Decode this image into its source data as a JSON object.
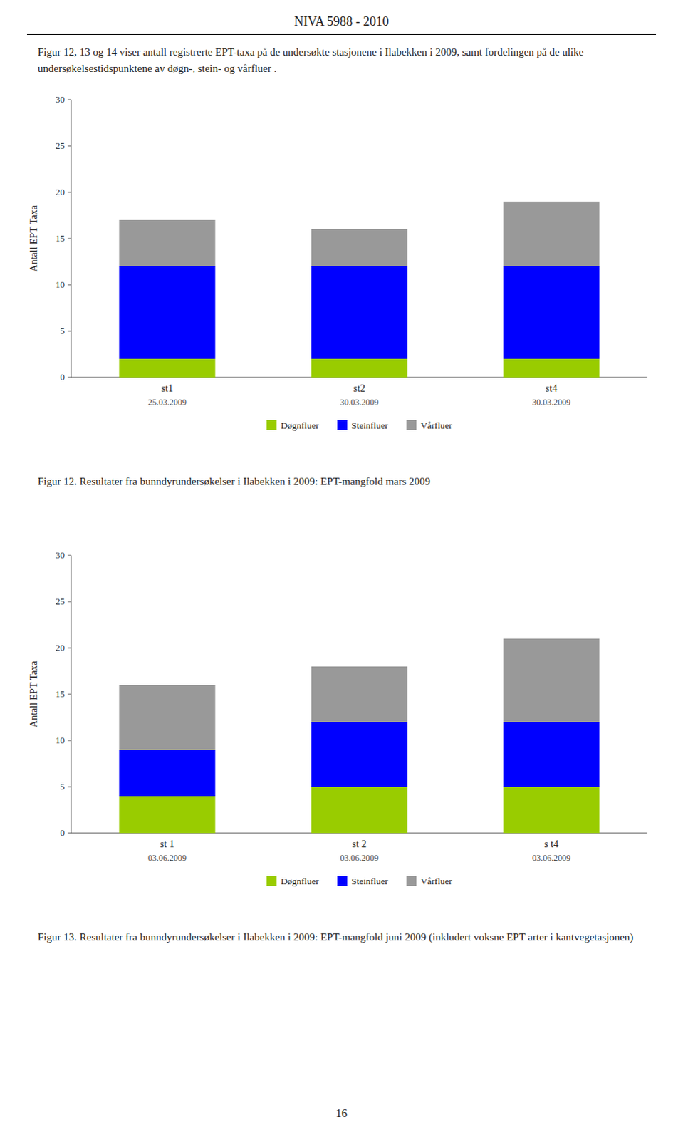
{
  "page_title": "NIVA 5988 - 2010",
  "intro_text": "Figur 12, 13 og 14 viser antall registrerte EPT-taxa på de undersøkte stasjonene i Ilabekken i 2009, samt fordelingen på de ulike undersøkelsestidspunktene av døgn-, stein- og vårfluer .",
  "page_number": "16",
  "chart_data": [
    {
      "type": "bar",
      "stacked": true,
      "legend": "bottom",
      "grid": false,
      "title": "Figur 12. Resultater fra bunndyrundersøkelser i Ilabekken i 2009: EPT-mangfold mars 2009",
      "categories": [
        "st1",
        "st2",
        "st4"
      ],
      "dates": [
        "25.03.2009",
        "30.03.2009",
        "30.03.2009"
      ],
      "ylabel": "Antall EPT Taxa",
      "ylim": [
        0,
        30
      ],
      "yticks": [
        0,
        5,
        10,
        15,
        20,
        25,
        30
      ],
      "series": [
        {
          "name": "Døgnfluer",
          "color": "#99cc00",
          "values": [
            2,
            2,
            2
          ]
        },
        {
          "name": "Steinfluer",
          "color": "#0000ff",
          "values": [
            10,
            10,
            10
          ]
        },
        {
          "name": "Vårfluer",
          "color": "#999999",
          "values": [
            5,
            4,
            7
          ]
        }
      ]
    },
    {
      "type": "bar",
      "stacked": true,
      "legend": "bottom",
      "grid": false,
      "title": "Figur 13. Resultater fra bunndyrundersøkelser i Ilabekken i 2009: EPT-mangfold juni 2009 (inkludert voksne EPT arter i kantvegetasjonen)",
      "categories": [
        "st 1",
        "st 2",
        "s t4"
      ],
      "dates": [
        "03.06.2009",
        "03.06.2009",
        "03.06.2009"
      ],
      "ylabel": "Antall EPT Taxa",
      "ylim": [
        0,
        30
      ],
      "yticks": [
        0,
        5,
        10,
        15,
        20,
        25,
        30
      ],
      "series": [
        {
          "name": "Døgnfluer",
          "color": "#99cc00",
          "values": [
            4,
            5,
            5
          ]
        },
        {
          "name": "Steinfluer",
          "color": "#0000ff",
          "values": [
            5,
            7,
            7
          ]
        },
        {
          "name": "Vårfluer",
          "color": "#999999",
          "values": [
            7,
            6,
            9
          ]
        }
      ]
    }
  ]
}
